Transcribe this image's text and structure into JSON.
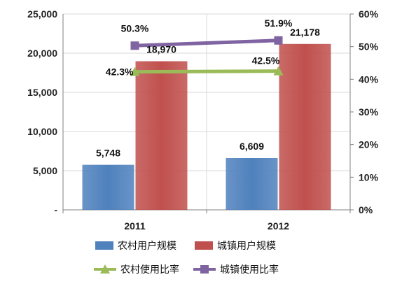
{
  "chart_data": {
    "type": "bar",
    "categories": [
      "2011",
      "2012"
    ],
    "y_left": {
      "ticks": [
        "25,000",
        "20,000",
        "15,000",
        "10,000",
        "5,000",
        "-"
      ],
      "range": [
        0,
        25000
      ]
    },
    "y_right": {
      "ticks": [
        "60%",
        "50%",
        "40%",
        "30%",
        "20%",
        "10%",
        "0%"
      ],
      "range": [
        0,
        60
      ]
    },
    "bar_series": [
      {
        "name": "农村用户规模",
        "values": [
          5748,
          6609
        ],
        "labels": [
          "5,748",
          "6,609"
        ],
        "color": "#4f81bd"
      },
      {
        "name": "城镇用户规模",
        "values": [
          18970,
          21178
        ],
        "labels": [
          "18,970",
          "21,178"
        ],
        "color": "#c0504d"
      }
    ],
    "line_series": [
      {
        "name": "农村使用比率",
        "values": [
          42.3,
          42.5
        ],
        "labels": [
          "42.3%",
          "42.5%"
        ],
        "color": "#9bbb59",
        "marker": "triangle",
        "axis": "right"
      },
      {
        "name": "城镇使用比率",
        "values": [
          50.3,
          51.9
        ],
        "labels": [
          "50.3%",
          "51.9%"
        ],
        "color": "#8064a2",
        "marker": "square",
        "axis": "right"
      }
    ],
    "legend_position": "bottom",
    "grid": true
  }
}
